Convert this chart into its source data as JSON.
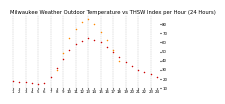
{
  "title": "Milwaukee Weather Outdoor Temperature vs THSW Index per Hour (24 Hours)",
  "hours": [
    1,
    2,
    3,
    4,
    5,
    6,
    7,
    8,
    9,
    10,
    11,
    12,
    13,
    14,
    15,
    16,
    17,
    18,
    19,
    20,
    21,
    22,
    23,
    24
  ],
  "temp": [
    18,
    16,
    16,
    15,
    14,
    15,
    22,
    32,
    42,
    52,
    58,
    62,
    65,
    63,
    60,
    55,
    50,
    44,
    38,
    34,
    30,
    27,
    25,
    22
  ],
  "thsw": [
    null,
    null,
    null,
    null,
    null,
    null,
    null,
    30,
    48,
    65,
    75,
    82,
    86,
    80,
    72,
    63,
    52,
    40,
    null,
    null,
    null,
    null,
    null,
    null
  ],
  "temp_color": "#cc0000",
  "thsw_color": "#ff8800",
  "black_color": "#000000",
  "grid_color": "#aaaaaa",
  "bg_color": "#ffffff",
  "title_fontsize": 3.8,
  "tick_fontsize": 2.8,
  "ylim": [
    10,
    90
  ],
  "yticks_right": [
    10,
    20,
    30,
    40,
    50,
    60,
    70,
    80
  ],
  "grid_hours": [
    1,
    3,
    5,
    7,
    9,
    11,
    13,
    15,
    17,
    19,
    21,
    23
  ]
}
